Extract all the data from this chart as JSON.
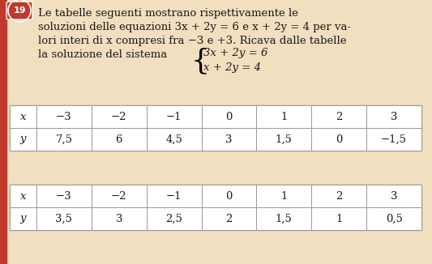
{
  "bg_color": "#f2dfc0",
  "text_color": "#1a1a1a",
  "number_circle": "19",
  "line1": "Le tabelle seguenti mostrano rispettivamente le",
  "line2": "soluzioni delle equazioni 3x + 2y = 6 e x + 2y = 4 per va-",
  "line3": "lori interi di x compresi fra −3 e +3. Ricava dalle tabelle",
  "line4": "la soluzione del sistema",
  "system_eq1": "3x + 2y = 6",
  "system_eq2": "x + 2y = 4",
  "table1_headers": [
    "x",
    "−3",
    "−2",
    "−1",
    "0",
    "1",
    "2",
    "3"
  ],
  "table1_row2": [
    "y",
    "7,5",
    "6",
    "4,5",
    "3",
    "1,5",
    "0",
    "−1,5"
  ],
  "table2_headers": [
    "x",
    "−3",
    "−2",
    "−1",
    "0",
    "1",
    "2",
    "3"
  ],
  "table2_row2": [
    "y",
    "3,5",
    "3",
    "2,5",
    "2",
    "1,5",
    "1",
    "0,5"
  ],
  "table_border_color": "#999999",
  "table_fill_color": "#ffffff",
  "left_bar_color": "#c0392b",
  "font_size_text": 9.5,
  "font_size_table": 9.5,
  "circle_color": "#c0392b"
}
